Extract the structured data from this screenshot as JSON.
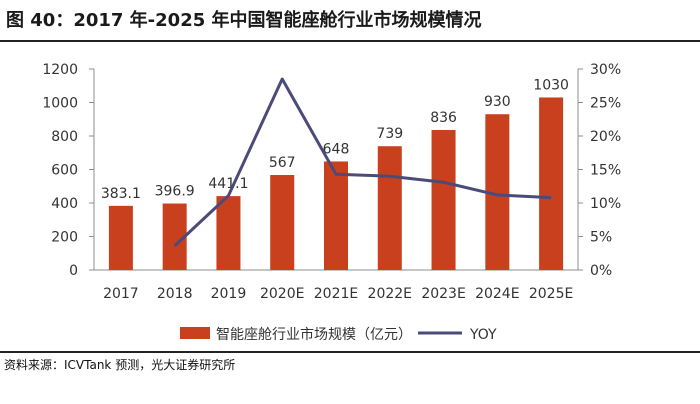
{
  "header": {
    "title": "图 40：2017 年-2025 年中国智能座舱行业市场规模情况"
  },
  "footer": {
    "source": "资料来源：ICVTank 预测，光大证券研究所"
  },
  "chart_data": {
    "type": "bar",
    "categories": [
      "2017",
      "2018",
      "2019",
      "2020E",
      "2021E",
      "2022E",
      "2023E",
      "2024E",
      "2025E"
    ],
    "series": [
      {
        "name": "智能座舱行业市场规模（亿元）",
        "type": "bar",
        "axis": "left",
        "color": "#C8401E",
        "values": [
          383.1,
          396.9,
          441.1,
          567,
          648,
          739,
          836,
          930,
          1030
        ],
        "labels": [
          "383.1",
          "396.9",
          "441.1",
          "567",
          "648",
          "739",
          "836",
          "930",
          "1030"
        ]
      },
      {
        "name": "YOY",
        "type": "line",
        "axis": "right",
        "color": "#4B4B7A",
        "values": [
          null,
          3.6,
          11.1,
          28.5,
          14.3,
          14.0,
          13.1,
          11.2,
          10.8
        ]
      }
    ],
    "left_axis": {
      "ylim": [
        0,
        1200
      ],
      "ticks": [
        "0",
        "200",
        "400",
        "600",
        "800",
        "1000",
        "1200"
      ]
    },
    "right_axis": {
      "ylim": [
        0,
        30
      ],
      "ticks": [
        "0%",
        "5%",
        "10%",
        "15%",
        "20%",
        "25%",
        "30%"
      ]
    },
    "legend_position": "bottom",
    "grid": false
  }
}
